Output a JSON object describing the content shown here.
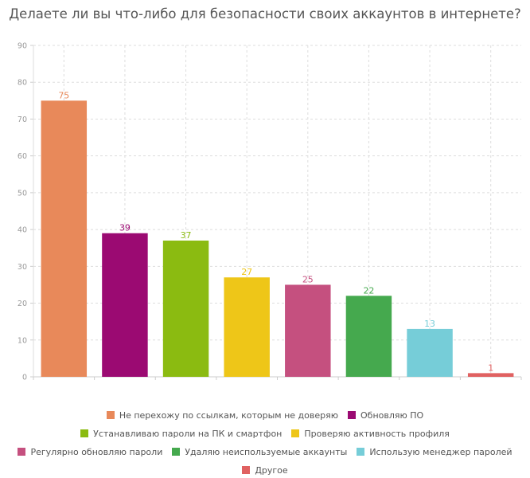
{
  "chart_data": {
    "type": "bar",
    "title": "Делаете ли вы что-либо для безопасности своих аккаунтов в интернете?",
    "categories": [
      "Не перехожу по ссылкам, которым не доверяю",
      "Обновляю ПО",
      "Устанавливаю пароли на ПК и смартфон",
      "Проверяю активность профиля",
      "Регулярно обновляю пароли",
      "Удаляю неиспользуемые аккаунты",
      "Использую менеджер паролей",
      "Другое"
    ],
    "values": [
      75,
      39,
      37,
      27,
      25,
      22,
      13,
      1
    ],
    "colors": [
      "#E8895A",
      "#9B0A72",
      "#8BBB11",
      "#EEC618",
      "#C5507F",
      "#45A94E",
      "#76CDD8",
      "#E06161"
    ],
    "ylim": [
      0,
      90
    ],
    "yticks": [
      0,
      10,
      20,
      30,
      40,
      50,
      60,
      70,
      80,
      90
    ],
    "grid": true,
    "legend": "bottom",
    "xlabel": "",
    "ylabel": ""
  }
}
